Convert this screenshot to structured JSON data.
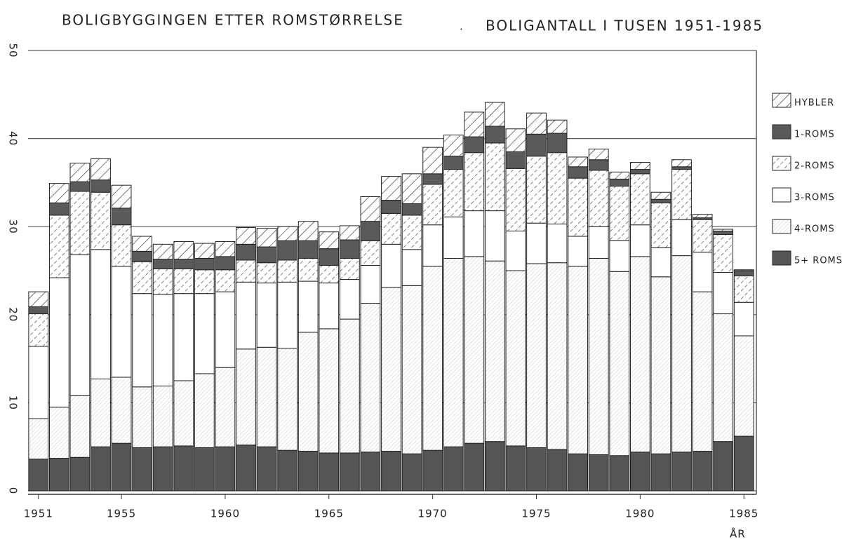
{
  "chart_data": {
    "type": "stacked-bar",
    "title": "BOLIGBYGGINGEN ETTER ROMSTØRRELSE",
    "subtitle": "BOLIGANTALL I TUSEN 1951-1985",
    "x_label": "ÅR",
    "categories": [
      "1951",
      null,
      null,
      null,
      "1955",
      null,
      null,
      null,
      null,
      "1960",
      null,
      null,
      null,
      null,
      "1965",
      null,
      null,
      null,
      null,
      "1970",
      null,
      null,
      null,
      null,
      "1975",
      null,
      null,
      null,
      null,
      "1980",
      null,
      null,
      null,
      null,
      "1985"
    ],
    "series": [
      {
        "name": "5+ ROMS",
        "color": "#555555",
        "hatch": "none",
        "values": [
          3.6,
          3.7,
          3.8,
          5.0,
          5.4,
          4.9,
          5.0,
          5.1,
          4.9,
          5.0,
          5.2,
          5.0,
          4.6,
          4.5,
          4.3,
          4.3,
          4.4,
          4.5,
          4.2,
          4.6,
          5.0,
          5.4,
          5.6,
          5.1,
          4.9,
          4.7,
          4.2,
          4.1,
          4.0,
          4.4,
          4.2,
          4.4,
          4.5,
          5.6,
          6.2
        ]
      },
      {
        "name": "4-ROMS",
        "color": "#bbbbbb",
        "hatch": "fine",
        "values": [
          4.6,
          5.8,
          7.0,
          7.7,
          7.5,
          6.9,
          6.9,
          7.4,
          8.4,
          9.0,
          10.9,
          11.3,
          11.6,
          13.5,
          14.1,
          15.2,
          16.9,
          18.6,
          19.1,
          20.9,
          21.4,
          21.2,
          20.5,
          19.9,
          20.9,
          21.2,
          21.3,
          22.3,
          20.9,
          22.2,
          20.1,
          22.3,
          18.1,
          14.5,
          11.4
        ]
      },
      {
        "name": "3-ROMS",
        "color": "#ffffff",
        "hatch": "none",
        "values": [
          8.2,
          14.7,
          16.0,
          14.7,
          12.6,
          10.6,
          10.4,
          9.9,
          9.1,
          8.6,
          7.6,
          7.3,
          7.5,
          5.8,
          5.2,
          4.5,
          4.3,
          4.9,
          4.1,
          4.7,
          4.7,
          5.2,
          5.7,
          4.5,
          4.6,
          4.4,
          3.4,
          3.6,
          3.5,
          3.6,
          3.3,
          4.1,
          4.5,
          4.7,
          3.8
        ]
      },
      {
        "name": "2-ROMS",
        "color": "#444444",
        "hatch": "dashed",
        "values": [
          3.7,
          7.1,
          7.2,
          6.5,
          4.7,
          3.6,
          2.9,
          2.8,
          2.7,
          2.5,
          2.5,
          2.3,
          2.5,
          2.6,
          2.0,
          2.4,
          2.8,
          3.5,
          3.9,
          4.6,
          5.4,
          6.6,
          7.7,
          7.1,
          7.6,
          8.1,
          6.6,
          6.4,
          6.2,
          5.8,
          5.1,
          5.7,
          3.7,
          4.3,
          3.0
        ]
      },
      {
        "name": "1-ROMS",
        "color": "#5a5a5a",
        "hatch": "none",
        "values": [
          0.8,
          1.4,
          1.1,
          1.4,
          1.9,
          1.2,
          1.1,
          1.1,
          1.3,
          1.5,
          1.8,
          1.8,
          2.2,
          2.0,
          1.9,
          2.1,
          2.2,
          1.5,
          1.3,
          1.2,
          1.5,
          1.8,
          1.9,
          1.9,
          2.5,
          2.2,
          1.3,
          1.2,
          0.8,
          0.5,
          0.4,
          0.3,
          0.2,
          0.4,
          0.6
        ]
      },
      {
        "name": "HYBLER",
        "color": "#333333",
        "hatch": "wide",
        "values": [
          1.7,
          2.2,
          2.1,
          2.4,
          2.6,
          1.7,
          1.7,
          2.0,
          1.7,
          1.7,
          1.9,
          2.1,
          1.6,
          2.2,
          1.9,
          1.6,
          2.8,
          2.7,
          3.4,
          3.0,
          2.4,
          2.8,
          2.7,
          2.6,
          2.4,
          1.5,
          1.1,
          1.2,
          0.8,
          0.8,
          0.8,
          0.8,
          0.4,
          0.2,
          0.1
        ]
      }
    ],
    "ylim": [
      0,
      50
    ],
    "yticks": [
      0,
      10,
      20,
      30,
      40,
      50
    ],
    "grid": true,
    "legend": "right"
  }
}
